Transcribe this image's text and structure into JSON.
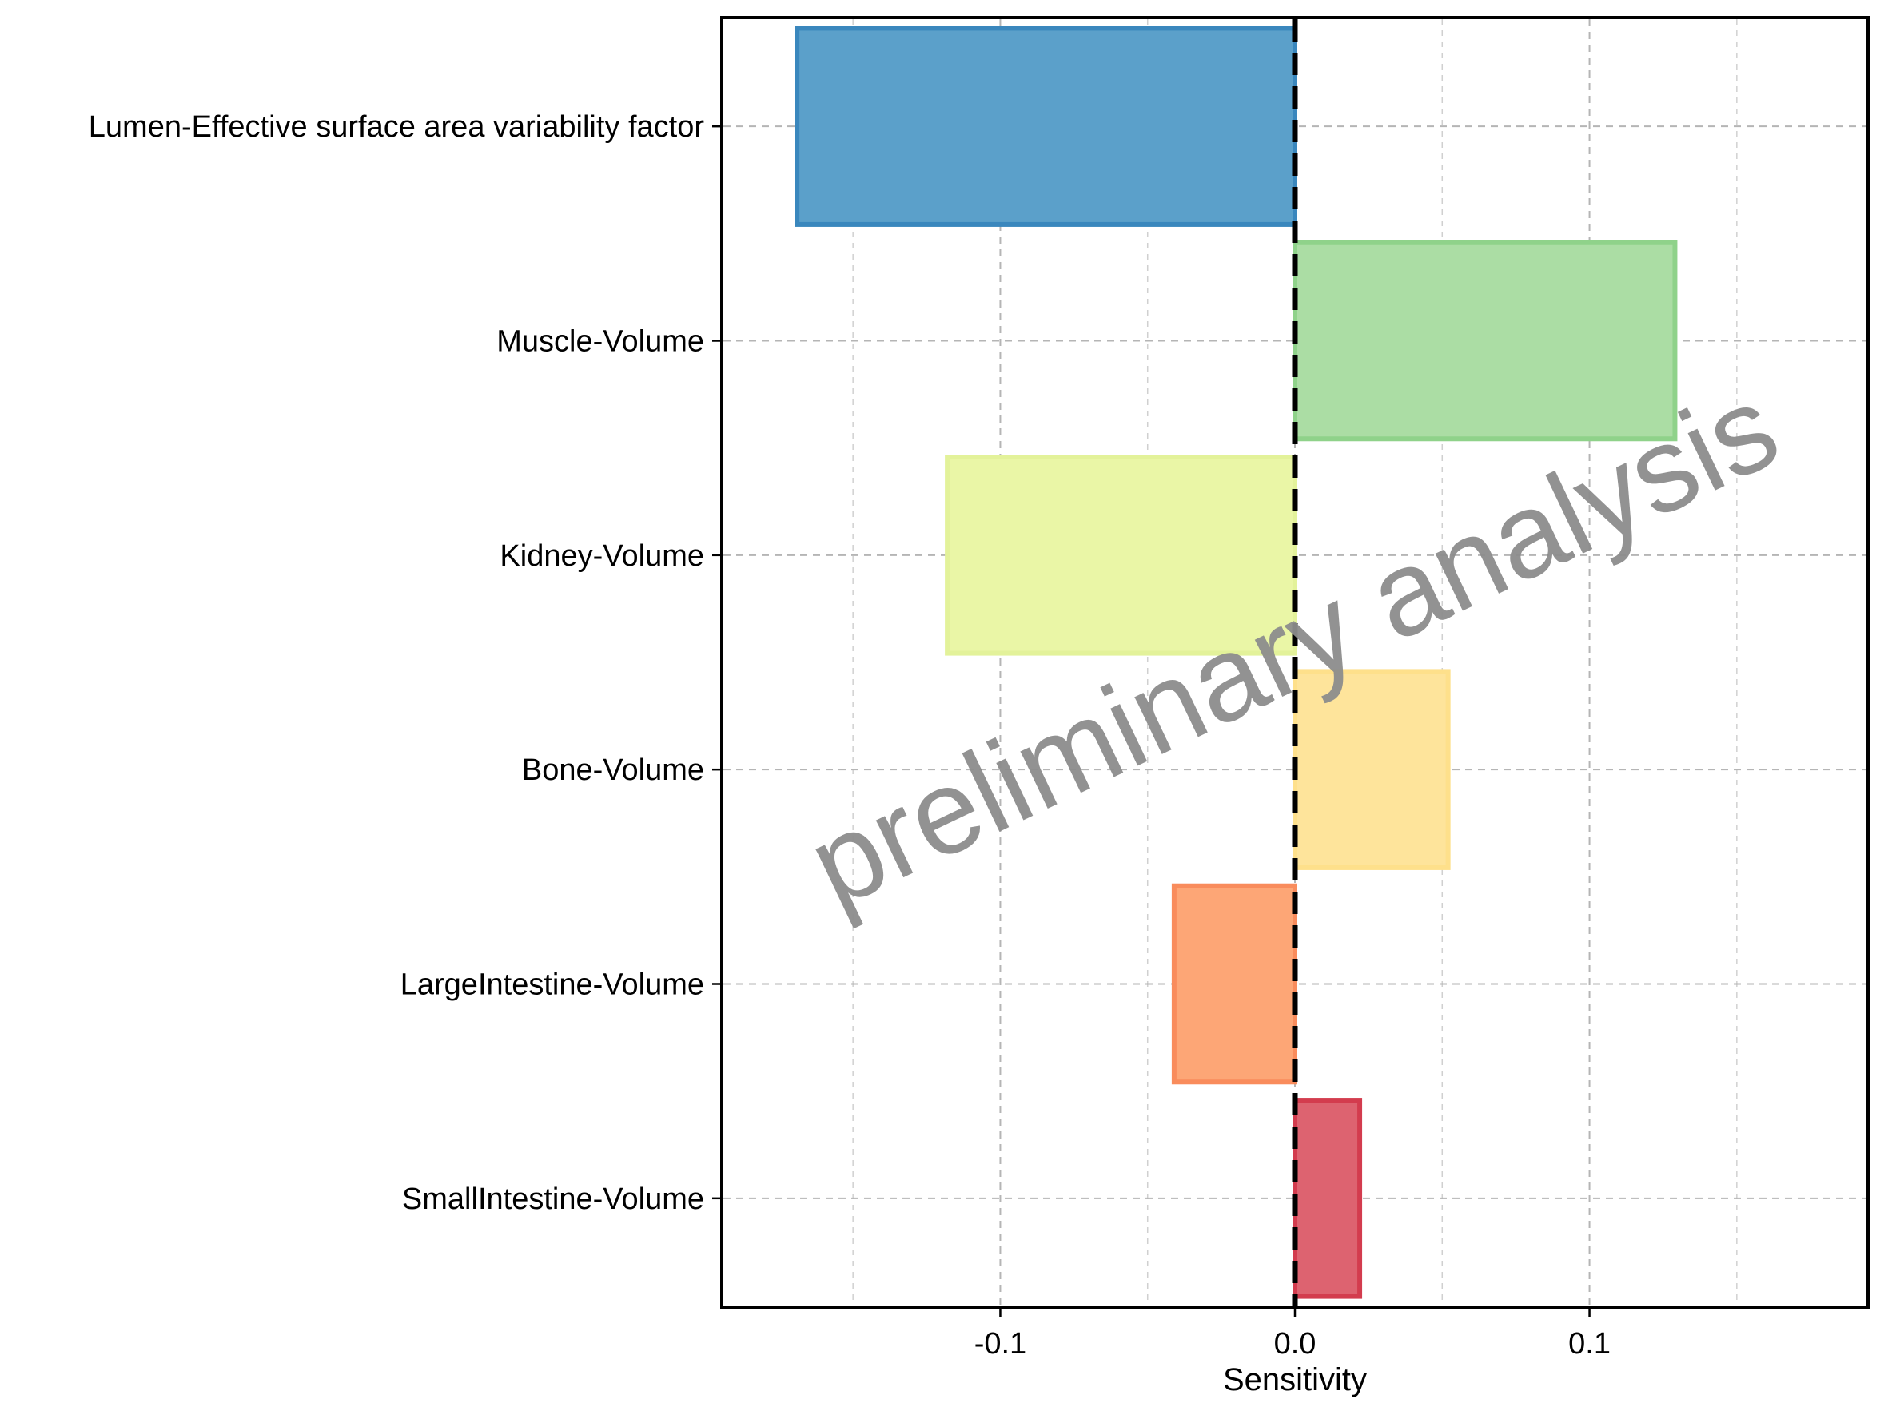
{
  "chart_data": {
    "type": "bar",
    "orientation": "horizontal",
    "title": "",
    "xlabel": "Sensitivity",
    "ylabel": "",
    "xlim": [
      -0.194,
      0.194
    ],
    "x_ticks": [
      -0.1,
      0.0,
      0.1
    ],
    "x_tick_labels": [
      "-0.1",
      "0.0",
      "0.1"
    ],
    "x_minor_ticks": [
      -0.15,
      -0.05,
      0.05,
      0.15
    ],
    "grid": true,
    "legend": "none",
    "reference_line": {
      "x": 0.0,
      "style": "dashed",
      "color": "#000000"
    },
    "categories": [
      "Lumen-Effective surface area variability factor",
      "Muscle-Volume",
      "Kidney-Volume",
      "Bone-Volume",
      "LargeIntestine-Volume",
      "SmallIntestine-Volume"
    ],
    "values": [
      -0.169,
      0.129,
      -0.118,
      0.052,
      -0.041,
      0.022
    ],
    "fill_colors": [
      "#5ba0ca",
      "#abdda4",
      "#eaf6a6",
      "#fee49b",
      "#fda676",
      "#dd6370"
    ],
    "edge_colors": [
      "#3a87bd",
      "#8fd28a",
      "#e3f29a",
      "#fee08b",
      "#f98c5c",
      "#d33c4e"
    ],
    "watermark": "preliminary analysis"
  }
}
